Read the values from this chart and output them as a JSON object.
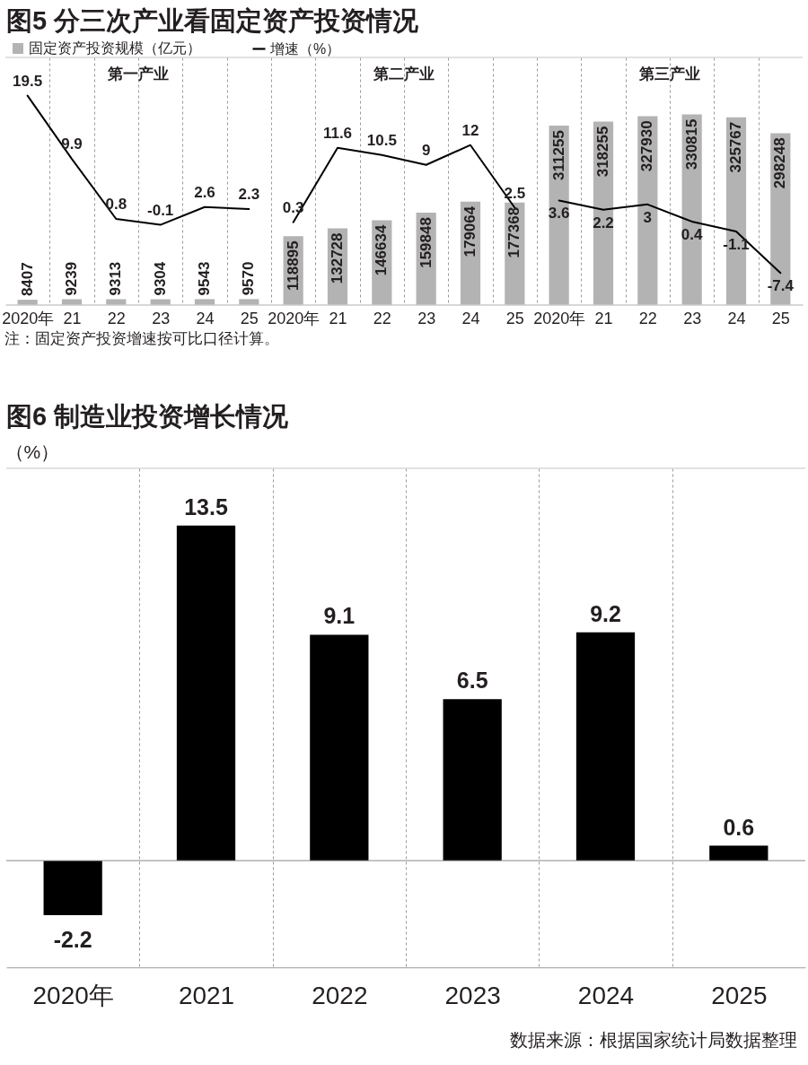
{
  "chart_data": [
    {
      "type": "bar",
      "title": "图5 分三次产业看固定资产投资情况",
      "categories": [
        "2020年",
        "21",
        "22",
        "23",
        "24",
        "25",
        "2020年",
        "21",
        "22",
        "23",
        "24",
        "25",
        "2020年",
        "21",
        "22",
        "23",
        "24",
        "25"
      ],
      "series": [
        {
          "name": "固定资产投资规模（亿元）",
          "color": "#b3b3b3",
          "values": [
            8407,
            9239,
            9313,
            9304,
            9543,
            9570,
            118895,
            132728,
            146634,
            159848,
            179064,
            177368,
            311255,
            318255,
            327930,
            330815,
            325767,
            298248
          ]
        },
        {
          "type": "line",
          "name": "增速（%）",
          "color": "#000000",
          "axis": "y2",
          "values": [
            19.5,
            9.9,
            0.8,
            -0.1,
            2.6,
            2.3,
            null,
            null,
            null,
            null,
            null,
            null,
            null,
            null,
            null,
            null,
            null,
            null
          ]
        },
        {
          "type": "line",
          "color": "#000000",
          "axis": "y2",
          "values": [
            null,
            null,
            null,
            null,
            null,
            null,
            0.3,
            11.6,
            10.5,
            9,
            12,
            2.5,
            null,
            null,
            null,
            null,
            null,
            null
          ]
        },
        {
          "type": "line",
          "color": "#000000",
          "axis": "y2",
          "values": [
            null,
            null,
            null,
            null,
            null,
            null,
            null,
            null,
            null,
            null,
            null,
            null,
            3.6,
            2.2,
            3,
            0.4,
            -1.1,
            -7.4
          ]
        }
      ],
      "ylim": [
        0,
        430000
      ],
      "y2lim": [
        -12.2,
        25.3
      ],
      "data_labels": true,
      "grid": "x",
      "legend": "top left",
      "tick_labels": "x",
      "annotations": [
        "第一产业",
        "第二产业",
        "第三产业",
        "注：固定资产投资增速按可比口径计算。"
      ]
    },
    {
      "type": "bar",
      "title": "图6 制造业投资增长情况",
      "ylabel": "（%）",
      "categories": [
        "2020年",
        "2021",
        "2022",
        "2023",
        "2024",
        "2025"
      ],
      "values": [
        -2.2,
        13.5,
        9.1,
        6.5,
        9.2,
        0.6
      ],
      "color": "#000000",
      "ylim": [
        -4.3,
        15.8
      ],
      "data_labels": true,
      "grid": "x",
      "tick_labels": "x",
      "annotations": [
        "数据来源：根据国家统计局数据整理"
      ]
    }
  ]
}
